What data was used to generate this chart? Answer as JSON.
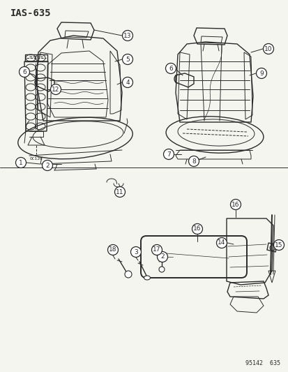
{
  "title": "IAS-635",
  "watermark": "95142  635",
  "background_color": "#f5f5f0",
  "line_color": "#2a2a2a",
  "figsize": [
    4.14,
    5.33
  ],
  "dpi": 100,
  "border_color": "#aaaaaa"
}
